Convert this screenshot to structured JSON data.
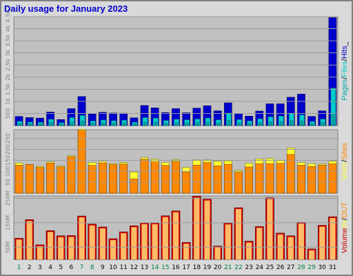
{
  "title": "Daily usage for January 2023",
  "colors": {
    "frame_bg": "#d9d9d9",
    "plot_bg": "#c0c0c0",
    "hits": "#0000cc",
    "files": "#00cccc",
    "pages": "#00aaaa",
    "visits": "#ffff33",
    "sites": "#ff8800",
    "kbin": "#ff8800",
    "kbout": "#ffbb66",
    "volume": "#cc0000",
    "weekend": "#008040",
    "weekday": "#000000"
  },
  "legends": {
    "top": [
      "Pages",
      "/",
      "Files",
      "/",
      "Hits",
      "_"
    ],
    "middle": [
      "Visits",
      "/",
      "Sites"
    ],
    "bottom": [
      "Volume",
      "IN",
      "/",
      "OUT"
    ]
  },
  "chart_data": [
    {
      "type": "bar",
      "panel": "hits-files-pages",
      "x": [
        1,
        2,
        3,
        4,
        5,
        6,
        7,
        8,
        9,
        10,
        11,
        12,
        13,
        14,
        15,
        16,
        17,
        18,
        19,
        20,
        21,
        22,
        23,
        24,
        25,
        26,
        27,
        28,
        29,
        30,
        31
      ],
      "ylim": [
        0,
        4500
      ],
      "yticks": [
        "500",
        "1k",
        "1.5k",
        "2k",
        "2.5k",
        "3k",
        "3.5k",
        "4k",
        "4.5k"
      ],
      "ytick_values": [
        500,
        1000,
        1500,
        2000,
        2500,
        3000,
        3500,
        4000,
        4500
      ],
      "series": [
        {
          "name": "Hits",
          "values": [
            380,
            330,
            310,
            560,
            250,
            700,
            1200,
            480,
            550,
            520,
            510,
            320,
            830,
            730,
            540,
            700,
            530,
            720,
            820,
            610,
            940,
            500,
            390,
            600,
            900,
            900,
            1170,
            1300,
            380,
            610,
            4460
          ]
        },
        {
          "name": "Files",
          "values": [
            180,
            150,
            140,
            260,
            120,
            330,
            420,
            190,
            230,
            200,
            220,
            140,
            330,
            310,
            210,
            260,
            240,
            270,
            310,
            240,
            520,
            250,
            190,
            280,
            360,
            390,
            510,
            440,
            170,
            270,
            1550
          ]
        },
        {
          "name": "Pages",
          "values": [
            90,
            80,
            70,
            120,
            60,
            150,
            180,
            90,
            110,
            100,
            100,
            70,
            140,
            140,
            100,
            120,
            110,
            120,
            140,
            110,
            200,
            110,
            90,
            120,
            150,
            160,
            200,
            180,
            80,
            120,
            500
          ]
        }
      ]
    },
    {
      "type": "bar",
      "panel": "visits-sites",
      "x": [
        1,
        2,
        3,
        4,
        5,
        6,
        7,
        8,
        9,
        10,
        11,
        12,
        13,
        14,
        15,
        16,
        17,
        18,
        19,
        20,
        21,
        22,
        23,
        24,
        25,
        26,
        27,
        28,
        29,
        30,
        31
      ],
      "ylim": [
        0,
        290
      ],
      "yticks": [
        "50",
        "100",
        "150",
        "200",
        "250"
      ],
      "ytick_values": [
        50,
        100,
        150,
        200,
        250
      ],
      "series": [
        {
          "name": "Visits",
          "values": [
            138,
            131,
            123,
            143,
            124,
            171,
            292,
            140,
            145,
            135,
            140,
            97,
            163,
            155,
            140,
            154,
            118,
            152,
            152,
            146,
            148,
            105,
            137,
            157,
            158,
            149,
            207,
            140,
            135,
            133,
            146
          ]
        },
        {
          "name": "Sites",
          "values": [
            128,
            131,
            118,
            138,
            120,
            167,
            287,
            127,
            138,
            131,
            133,
            65,
            155,
            143,
            127,
            145,
            96,
            128,
            140,
            125,
            132,
            95,
            120,
            135,
            135,
            136,
            177,
            128,
            122,
            128,
            134
          ]
        }
      ]
    },
    {
      "type": "bar",
      "panel": "volume",
      "x": [
        1,
        2,
        3,
        4,
        5,
        6,
        7,
        8,
        9,
        10,
        11,
        12,
        13,
        14,
        15,
        16,
        17,
        18,
        19,
        20,
        21,
        22,
        23,
        24,
        25,
        26,
        27,
        28,
        29,
        30,
        31
      ],
      "ylim": [
        0,
        260000000
      ],
      "yticks": [
        "50M",
        "150M",
        "250M"
      ],
      "ytick_values": [
        50000000,
        150000000,
        250000000
      ],
      "series": [
        {
          "name": "Volume",
          "values": [
            87000000,
            163000000,
            60000000,
            118000000,
            97000000,
            98000000,
            178000000,
            145000000,
            133000000,
            85000000,
            113000000,
            138000000,
            150000000,
            150000000,
            179000000,
            199000000,
            70000000,
            259000000,
            247000000,
            55000000,
            149000000,
            212000000,
            75000000,
            135000000,
            253000000,
            108000000,
            97000000,
            152000000,
            43000000,
            140000000,
            175000000
          ]
        }
      ]
    }
  ],
  "days": {
    "labels": [
      "1",
      "2",
      "3",
      "4",
      "5",
      "6",
      "7",
      "8",
      "9",
      "10",
      "11",
      "12",
      "13",
      "14",
      "15",
      "16",
      "17",
      "18",
      "19",
      "20",
      "21",
      "22",
      "23",
      "24",
      "25",
      "26",
      "27",
      "28",
      "29",
      "30",
      "31"
    ],
    "weekend_days": [
      1,
      7,
      8,
      14,
      15,
      21,
      22,
      28,
      29
    ]
  }
}
